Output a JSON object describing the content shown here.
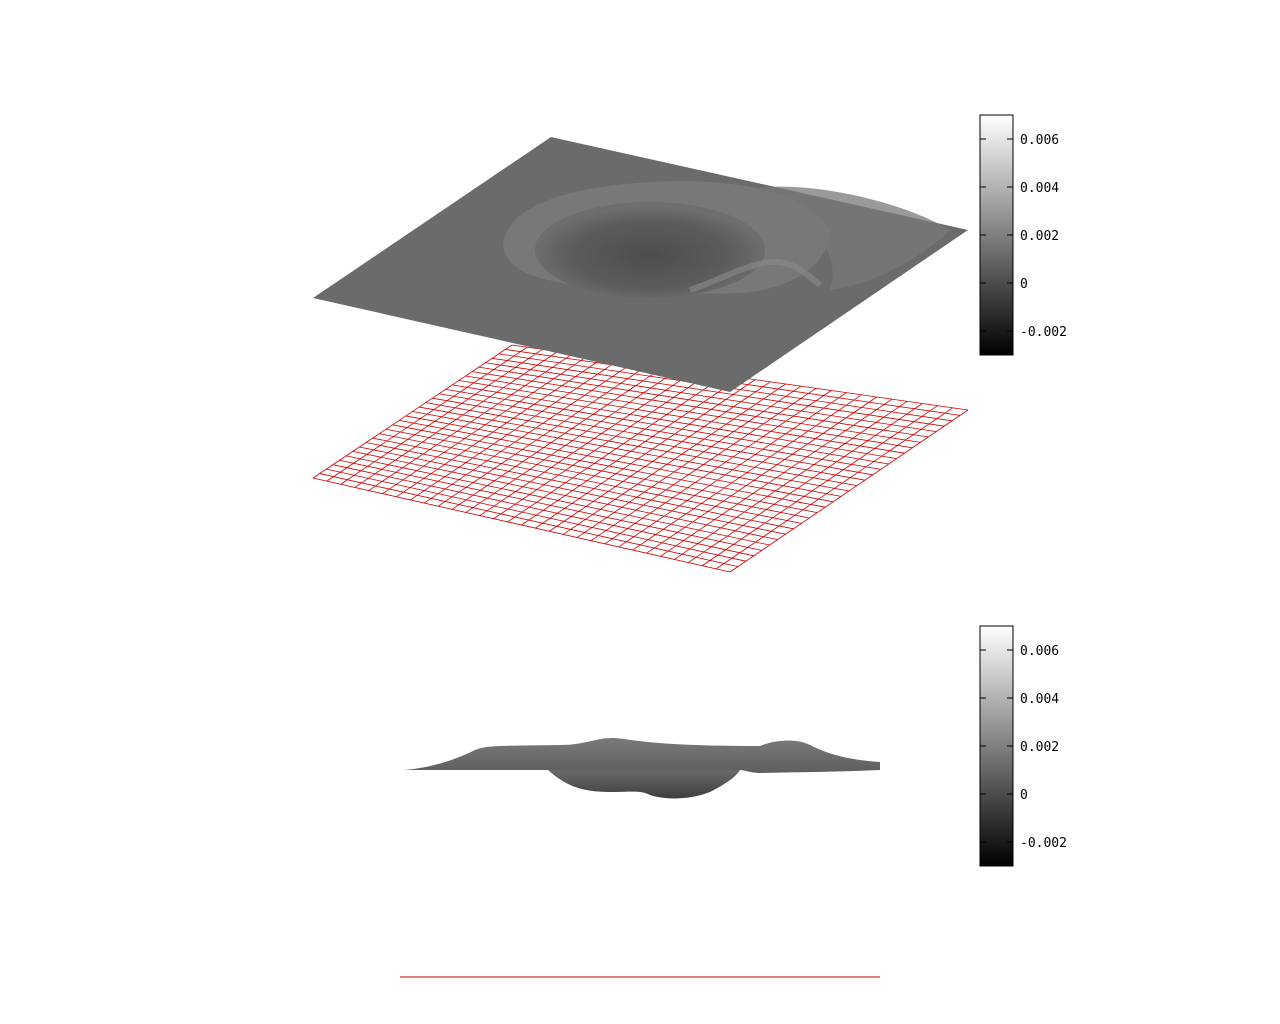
{
  "chart_data": [
    {
      "type": "surface",
      "view": "perspective",
      "title": "",
      "xlabel": "",
      "ylabel": "",
      "zlabel": "",
      "surface_shading": "grayscale",
      "base_grid_color": "#cc0000",
      "base_grid_lines": 30,
      "features": [
        {
          "kind": "depression",
          "depth_value": -0.0015
        },
        {
          "kind": "ring-ridge",
          "height_value": 0.0012
        },
        {
          "kind": "secondary-ridge",
          "height_value": 0.0008
        }
      ],
      "colorbar": {
        "range": [
          -0.003,
          0.007
        ],
        "ticks": [
          {
            "value": 0.006,
            "label": "0.006"
          },
          {
            "value": 0.004,
            "label": "0.004"
          },
          {
            "value": 0.002,
            "label": "0.002"
          },
          {
            "value": 0,
            "label": "0"
          },
          {
            "value": -0.002,
            "label": "-0.002"
          }
        ],
        "colormap": "black-to-white"
      }
    },
    {
      "type": "surface",
      "view": "side",
      "title": "",
      "xlabel": "",
      "ylabel": "",
      "zlabel": "",
      "surface_shading": "grayscale",
      "base_line_color": "#cc0000",
      "colorbar": {
        "range": [
          -0.003,
          0.007
        ],
        "ticks": [
          {
            "value": 0.006,
            "label": "0.006"
          },
          {
            "value": 0.004,
            "label": "0.004"
          },
          {
            "value": 0.002,
            "label": "0.002"
          },
          {
            "value": 0,
            "label": "0"
          },
          {
            "value": -0.002,
            "label": "-0.002"
          }
        ],
        "colormap": "black-to-white"
      }
    }
  ]
}
